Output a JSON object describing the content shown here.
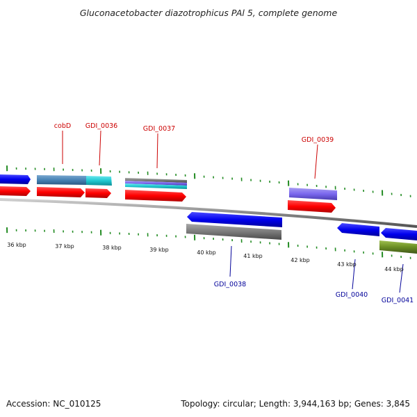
{
  "title": "Gluconacetobacter diazotrophicus PAl 5, complete genome",
  "footer": {
    "accession": "Accession: NC_010125",
    "summary": "Topology: circular; Length: 3,944,163 bp; Genes: 3,845"
  },
  "colors": {
    "label_forward": "#cc0000",
    "label_reverse": "#000099",
    "cds": "#ff0000",
    "gene_forward": "#0000ee",
    "gene_reverse": "#0000ee",
    "backbone": "#888888",
    "ticks": "#228b22",
    "olive": "#6b8e23",
    "slate": "#7b68ee",
    "teal": "#4682b4",
    "cyan": "#20c8d0",
    "gray": "#808080"
  },
  "kbp_labels": [
    "36 kbp",
    "37 kbp",
    "38 kbp",
    "39 kbp",
    "40 kbp",
    "41 kbp",
    "42 kbp",
    "43 kbp",
    "44 kbp"
  ],
  "genes_forward": [
    {
      "label": "cobD"
    },
    {
      "label": "GDI_0036"
    },
    {
      "label": "GDI_0037"
    },
    {
      "label": "GDI_0039"
    }
  ],
  "genes_reverse": [
    {
      "label": "GDI_0038"
    },
    {
      "label": "GDI_0040"
    },
    {
      "label": "GDI_0041"
    }
  ]
}
